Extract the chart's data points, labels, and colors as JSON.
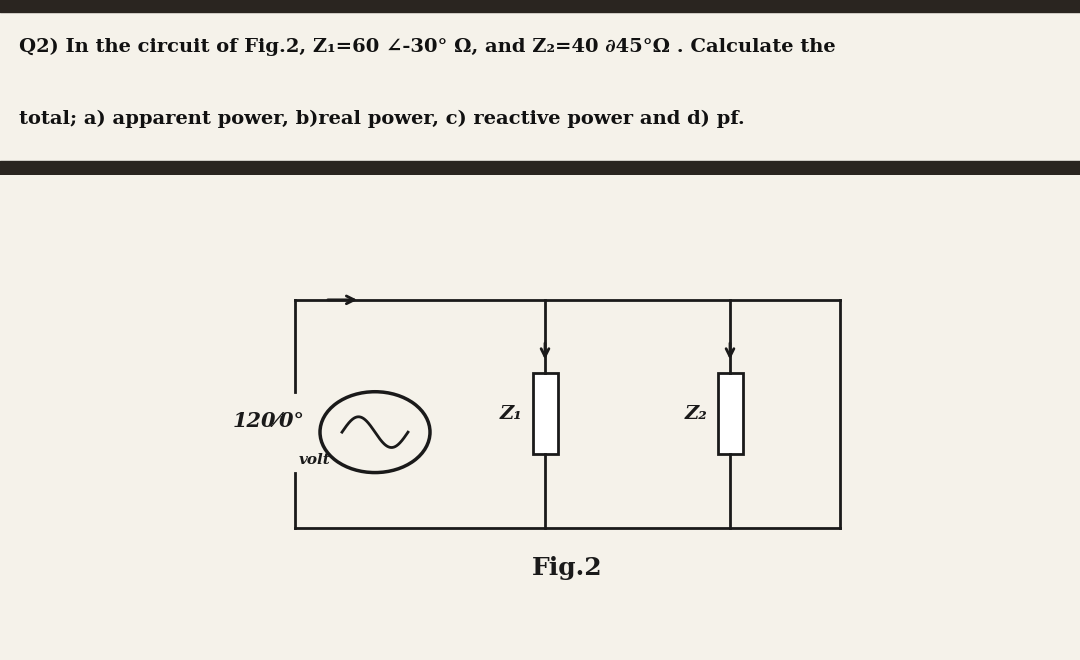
{
  "bg_color": "#f0ede4",
  "text_color": "#1a1a1a",
  "header_bg": "#c8c2b0",
  "header_text_color": "#111111",
  "title_line1": "Q2) In the circuit of Fig.2, Z₁=60 ∠-30° Ω, and Z₂=40 ∂45°Ω . Calculate the",
  "title_line2": "total; a) apparent power, b)real power, c) reactive power and d) pf.",
  "fig_label": "Fig.2",
  "voltage_label": "120⁄0°",
  "voltage_sub": "volt",
  "z1_label": "Z₁",
  "z2_label": "Z₂",
  "circuit_color": "#1a1a1a",
  "top_bar_color": "#2a2520",
  "bottom_bar_color": "#2a2520",
  "fig_bg": "#f5f2ea"
}
